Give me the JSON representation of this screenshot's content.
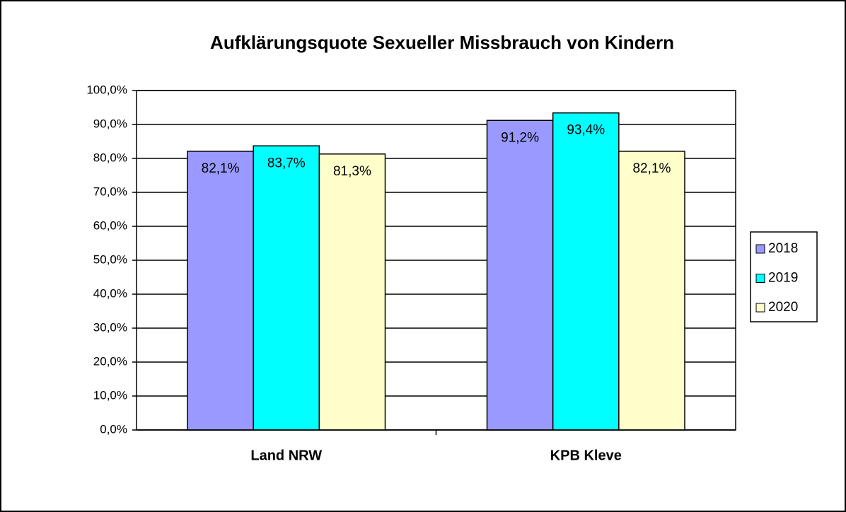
{
  "chart_data": {
    "type": "bar",
    "title": "Aufklärungsquote Sexueller Missbrauch von Kindern",
    "categories": [
      "Land NRW",
      "KPB Kleve"
    ],
    "series": [
      {
        "name": "2018",
        "color": "#9999ff",
        "values": [
          82.1,
          91.2
        ],
        "value_labels": [
          "82,1%",
          "91,2%"
        ]
      },
      {
        "name": "2019",
        "color": "#00ffff",
        "values": [
          83.7,
          93.4
        ],
        "value_labels": [
          "83,7%",
          "93,4%"
        ]
      },
      {
        "name": "2020",
        "color": "#ffffcc",
        "values": [
          81.3,
          82.1
        ],
        "value_labels": [
          "81,3%",
          "82,1%"
        ]
      }
    ],
    "ylim": [
      0,
      100
    ],
    "yticks": [
      {
        "value": 0,
        "label": "0,0%"
      },
      {
        "value": 10,
        "label": "10,0%"
      },
      {
        "value": 20,
        "label": "20,0%"
      },
      {
        "value": 30,
        "label": "30,0%"
      },
      {
        "value": 40,
        "label": "40,0%"
      },
      {
        "value": 50,
        "label": "50,0%"
      },
      {
        "value": 60,
        "label": "60,0%"
      },
      {
        "value": 70,
        "label": "70,0%"
      },
      {
        "value": 80,
        "label": "80,0%"
      },
      {
        "value": 90,
        "label": "90,0%"
      },
      {
        "value": 100,
        "label": "100,0%"
      }
    ],
    "grid": true,
    "legend": "right"
  }
}
